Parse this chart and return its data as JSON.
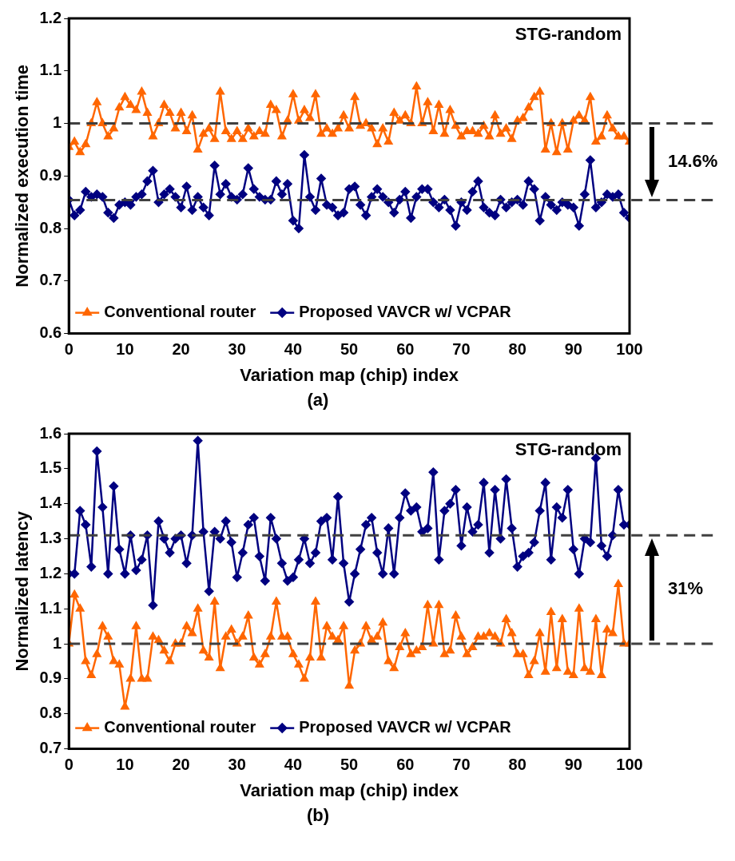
{
  "chart_data": [
    {
      "type": "line",
      "xlabel": "Variation map (chip) index",
      "ylabel": "Normalized execution time",
      "xlim": [
        0,
        100
      ],
      "xticks": [
        0,
        10,
        20,
        30,
        40,
        50,
        60,
        70,
        80,
        90,
        100
      ],
      "ylim": [
        0.6,
        1.2
      ],
      "yticks": [
        0.6,
        0.7,
        0.8,
        0.9,
        1,
        1.1,
        1.2
      ],
      "grid": false,
      "legend": "bottom",
      "line_style": "solid",
      "x": [
        0,
        1,
        2,
        3,
        4,
        5,
        6,
        7,
        8,
        9,
        10,
        11,
        12,
        13,
        14,
        15,
        16,
        17,
        18,
        19,
        20,
        21,
        22,
        23,
        24,
        25,
        26,
        27,
        28,
        29,
        30,
        31,
        32,
        33,
        34,
        35,
        36,
        37,
        38,
        39,
        40,
        41,
        42,
        43,
        44,
        45,
        46,
        47,
        48,
        49,
        50,
        51,
        52,
        53,
        54,
        55,
        56,
        57,
        58,
        59,
        60,
        61,
        62,
        63,
        64,
        65,
        66,
        67,
        68,
        69,
        70,
        71,
        72,
        73,
        74,
        75,
        76,
        77,
        78,
        79,
        80,
        81,
        82,
        83,
        84,
        85,
        86,
        87,
        88,
        89,
        90,
        91,
        92,
        93,
        94,
        95,
        96,
        97,
        98,
        99,
        100
      ],
      "series": [
        {
          "name": "Conventional router",
          "color": "#ff6600",
          "marker": "triangle",
          "values": [
            0.955,
            0.965,
            0.945,
            0.96,
            1.0,
            1.04,
            1.0,
            0.975,
            0.99,
            1.03,
            1.05,
            1.035,
            1.025,
            1.06,
            1.02,
            0.975,
            1.0,
            1.035,
            1.02,
            0.99,
            1.02,
            0.985,
            1.015,
            0.95,
            0.98,
            0.99,
            0.97,
            1.06,
            0.985,
            0.97,
            0.985,
            0.97,
            0.99,
            0.975,
            0.985,
            0.98,
            1.035,
            1.025,
            0.975,
            1.005,
            1.055,
            1.005,
            1.025,
            1.01,
            1.055,
            0.98,
            0.99,
            0.98,
            0.99,
            1.015,
            0.99,
            1.05,
            0.995,
            1.0,
            0.99,
            0.96,
            0.99,
            0.965,
            1.02,
            1.005,
            1.015,
            1.0,
            1.07,
            1.0,
            1.04,
            0.985,
            1.035,
            0.98,
            1.025,
            0.995,
            0.975,
            0.985,
            0.985,
            0.98,
            0.995,
            0.975,
            1.015,
            0.98,
            0.99,
            0.97,
            1.005,
            1.01,
            1.03,
            1.05,
            1.06,
            0.95,
            1.0,
            0.945,
            1.0,
            0.95,
            1.005,
            1.015,
            1.005,
            1.05,
            0.965,
            0.975,
            1.015,
            0.99,
            0.975,
            0.975,
            0.965
          ]
        },
        {
          "name": "Proposed VAVCR w/ VCPAR",
          "color": "#000080",
          "marker": "diamond",
          "values": [
            0.855,
            0.825,
            0.835,
            0.87,
            0.86,
            0.865,
            0.86,
            0.83,
            0.82,
            0.845,
            0.85,
            0.845,
            0.86,
            0.865,
            0.89,
            0.91,
            0.85,
            0.865,
            0.875,
            0.86,
            0.84,
            0.88,
            0.835,
            0.86,
            0.84,
            0.825,
            0.92,
            0.865,
            0.885,
            0.86,
            0.855,
            0.865,
            0.915,
            0.875,
            0.86,
            0.855,
            0.855,
            0.89,
            0.865,
            0.885,
            0.815,
            0.8,
            0.94,
            0.86,
            0.835,
            0.895,
            0.845,
            0.84,
            0.825,
            0.83,
            0.875,
            0.88,
            0.845,
            0.825,
            0.86,
            0.875,
            0.86,
            0.85,
            0.83,
            0.855,
            0.87,
            0.82,
            0.86,
            0.875,
            0.875,
            0.85,
            0.84,
            0.855,
            0.835,
            0.805,
            0.85,
            0.835,
            0.87,
            0.89,
            0.84,
            0.83,
            0.825,
            0.855,
            0.84,
            0.85,
            0.855,
            0.845,
            0.89,
            0.875,
            0.815,
            0.86,
            0.845,
            0.835,
            0.85,
            0.845,
            0.84,
            0.805,
            0.865,
            0.93,
            0.84,
            0.85,
            0.865,
            0.86,
            0.865,
            0.83,
            0.82
          ]
        }
      ],
      "ref_lines": [
        {
          "axis": "y",
          "value": 1,
          "color": "#404040",
          "line_style": "dashed"
        },
        {
          "axis": "y",
          "value": 0.854,
          "color": "#404040",
          "line_style": "dashed"
        }
      ],
      "annotations": [
        "STG-random",
        "14.6%",
        "(a)"
      ]
    },
    {
      "type": "line",
      "xlabel": "Variation map (chip) index",
      "ylabel": "Normalized latency",
      "xlim": [
        0,
        100
      ],
      "xticks": [
        0,
        10,
        20,
        30,
        40,
        50,
        60,
        70,
        80,
        90,
        100
      ],
      "ylim": [
        0.7,
        1.6
      ],
      "yticks": [
        0.7,
        0.8,
        0.9,
        1,
        1.1,
        1.2,
        1.3,
        1.4,
        1.5,
        1.6
      ],
      "grid": false,
      "legend": "bottom",
      "line_style": "solid",
      "x": [
        0,
        1,
        2,
        3,
        4,
        5,
        6,
        7,
        8,
        9,
        10,
        11,
        12,
        13,
        14,
        15,
        16,
        17,
        18,
        19,
        20,
        21,
        22,
        23,
        24,
        25,
        26,
        27,
        28,
        29,
        30,
        31,
        32,
        33,
        34,
        35,
        36,
        37,
        38,
        39,
        40,
        41,
        42,
        43,
        44,
        45,
        46,
        47,
        48,
        49,
        50,
        51,
        52,
        53,
        54,
        55,
        56,
        57,
        58,
        59,
        60,
        61,
        62,
        63,
        64,
        65,
        66,
        67,
        68,
        69,
        70,
        71,
        72,
        73,
        74,
        75,
        76,
        77,
        78,
        79,
        80,
        81,
        82,
        83,
        84,
        85,
        86,
        87,
        88,
        89,
        90,
        91,
        92,
        93,
        94,
        95,
        96,
        97,
        98,
        99,
        100
      ],
      "series": [
        {
          "name": "Conventional router",
          "color": "#ff6600",
          "marker": "triangle",
          "values": [
            1.0,
            1.14,
            1.1,
            0.95,
            0.91,
            0.97,
            1.05,
            1.02,
            0.95,
            0.94,
            0.82,
            0.9,
            1.05,
            0.9,
            0.9,
            1.02,
            1.01,
            0.98,
            0.95,
            1.0,
            1.0,
            1.05,
            1.03,
            1.1,
            0.98,
            0.96,
            1.12,
            0.93,
            1.02,
            1.04,
            1.0,
            1.02,
            1.08,
            0.96,
            0.94,
            0.97,
            1.02,
            1.12,
            1.02,
            1.02,
            0.97,
            0.94,
            0.9,
            0.96,
            1.12,
            0.96,
            1.05,
            1.02,
            1.01,
            1.05,
            0.88,
            0.98,
            1.0,
            1.05,
            1.01,
            1.02,
            1.06,
            0.95,
            0.93,
            0.99,
            1.03,
            0.97,
            0.98,
            0.99,
            1.11,
            1.0,
            1.11,
            0.97,
            0.98,
            1.08,
            1.02,
            0.97,
            0.99,
            1.02,
            1.02,
            1.03,
            1.02,
            1.0,
            1.07,
            1.03,
            0.97,
            0.97,
            0.91,
            0.95,
            1.03,
            0.92,
            1.09,
            0.93,
            1.07,
            0.92,
            0.91,
            1.1,
            0.93,
            0.92,
            1.07,
            0.91,
            1.04,
            1.03,
            1.17,
            1.0,
            1.0
          ]
        },
        {
          "name": "Proposed VAVCR w/ VCPAR",
          "color": "#000080",
          "marker": "diamond",
          "values": [
            1.2,
            1.2,
            1.38,
            1.34,
            1.22,
            1.55,
            1.39,
            1.2,
            1.45,
            1.27,
            1.2,
            1.31,
            1.21,
            1.24,
            1.31,
            1.11,
            1.35,
            1.3,
            1.26,
            1.3,
            1.31,
            1.23,
            1.31,
            1.58,
            1.32,
            1.15,
            1.32,
            1.3,
            1.35,
            1.29,
            1.19,
            1.26,
            1.34,
            1.36,
            1.25,
            1.18,
            1.36,
            1.3,
            1.23,
            1.18,
            1.19,
            1.24,
            1.3,
            1.23,
            1.26,
            1.35,
            1.36,
            1.24,
            1.42,
            1.23,
            1.12,
            1.2,
            1.27,
            1.34,
            1.36,
            1.26,
            1.2,
            1.33,
            1.2,
            1.36,
            1.43,
            1.38,
            1.39,
            1.32,
            1.33,
            1.49,
            1.24,
            1.38,
            1.4,
            1.44,
            1.28,
            1.39,
            1.32,
            1.34,
            1.46,
            1.26,
            1.44,
            1.3,
            1.47,
            1.33,
            1.22,
            1.25,
            1.26,
            1.29,
            1.38,
            1.46,
            1.24,
            1.39,
            1.36,
            1.44,
            1.27,
            1.2,
            1.3,
            1.29,
            1.53,
            1.28,
            1.25,
            1.31,
            1.44,
            1.34,
            1.34
          ]
        }
      ],
      "ref_lines": [
        {
          "axis": "y",
          "value": 1,
          "color": "#404040",
          "line_style": "dashed"
        },
        {
          "axis": "y",
          "value": 1.31,
          "color": "#404040",
          "line_style": "dashed"
        }
      ],
      "annotations": [
        "STG-random",
        "31%",
        "(b)"
      ]
    }
  ]
}
